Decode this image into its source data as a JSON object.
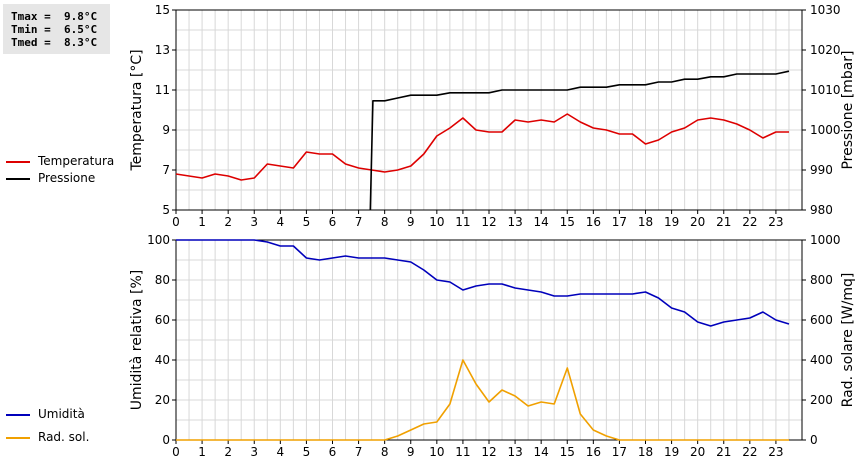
{
  "stats": {
    "tmax": "Tmax =  9.8°C",
    "tmin": "Tmin =  6.5°C",
    "tmed": "Tmed =  8.3°C"
  },
  "legend_top": [
    {
      "label": "Temperatura",
      "color": "#dd0000"
    },
    {
      "label": "Pressione",
      "color": "#000000"
    }
  ],
  "legend_bottom": [
    {
      "label": "Umidità",
      "color": "#0000bb"
    },
    {
      "label": "Rad. sol.",
      "color": "#f0a000"
    }
  ],
  "chart_data": [
    {
      "type": "line",
      "xlabel": "",
      "ylabel": "Temperatura [°C]",
      "ylabel_right": "Pressione [mbar]",
      "xlim": [
        0,
        24
      ],
      "xticks": [
        0,
        1,
        2,
        3,
        4,
        5,
        6,
        7,
        8,
        9,
        10,
        11,
        12,
        13,
        14,
        15,
        16,
        17,
        18,
        19,
        20,
        21,
        22,
        23
      ],
      "ylim": [
        5,
        15
      ],
      "yticks": [
        5,
        7,
        9,
        11,
        13,
        15
      ],
      "ylim_right": [
        980,
        1030
      ],
      "yticks_right": [
        980,
        990,
        1000,
        1010,
        1020,
        1030
      ],
      "grid": true,
      "series": [
        {
          "name": "Temperatura",
          "axis": "left",
          "color": "#dd0000",
          "x": [
            0,
            0.5,
            1,
            1.5,
            2,
            2.5,
            3,
            3.5,
            4,
            4.5,
            5,
            5.5,
            6,
            6.5,
            7,
            7.5,
            8,
            8.5,
            9,
            9.5,
            10,
            10.5,
            11,
            11.5,
            12,
            12.5,
            13,
            13.5,
            14,
            14.5,
            15,
            15.5,
            16,
            16.5,
            17,
            17.5,
            18,
            18.5,
            19,
            19.5,
            20,
            20.5,
            21,
            21.5,
            22,
            22.5,
            23,
            23.5
          ],
          "y": [
            6.8,
            6.7,
            6.6,
            6.8,
            6.7,
            6.5,
            6.6,
            7.3,
            7.2,
            7.1,
            7.9,
            7.8,
            7.8,
            7.3,
            7.1,
            7.0,
            6.9,
            7.0,
            7.2,
            7.8,
            8.7,
            9.1,
            9.6,
            9.0,
            8.9,
            8.9,
            9.5,
            9.4,
            9.5,
            9.4,
            9.8,
            9.4,
            9.1,
            9.0,
            8.8,
            8.8,
            8.3,
            8.5,
            8.9,
            9.1,
            9.5,
            9.6,
            9.5,
            9.3,
            9.0,
            8.6,
            8.9,
            8.9
          ]
        },
        {
          "name": "Pressione",
          "axis": "right",
          "color": "#000000",
          "x": [
            7.45,
            7.55,
            8,
            8.5,
            9,
            9.5,
            10,
            10.5,
            11,
            11.5,
            12,
            12.5,
            13,
            13.5,
            14,
            14.5,
            15,
            15.5,
            16,
            16.5,
            17,
            17.5,
            18,
            18.5,
            19,
            19.5,
            20,
            20.5,
            21,
            21.5,
            22,
            22.5,
            23,
            23.5
          ],
          "y": [
            980,
            1007.3,
            1007.3,
            1008,
            1008.7,
            1008.7,
            1008.7,
            1009.3,
            1009.3,
            1009.3,
            1009.3,
            1010,
            1010,
            1010,
            1010,
            1010,
            1010,
            1010.7,
            1010.7,
            1010.7,
            1011.3,
            1011.3,
            1011.3,
            1012,
            1012,
            1012.7,
            1012.7,
            1013.3,
            1013.3,
            1014,
            1014,
            1014,
            1014,
            1014.7
          ]
        }
      ]
    },
    {
      "type": "line",
      "xlabel": "",
      "ylabel": "Umidità relativa [%]",
      "ylabel_right": "Rad. solare [W/mq]",
      "xlim": [
        0,
        24
      ],
      "xticks": [
        0,
        1,
        2,
        3,
        4,
        5,
        6,
        7,
        8,
        9,
        10,
        11,
        12,
        13,
        14,
        15,
        16,
        17,
        18,
        19,
        20,
        21,
        22,
        23
      ],
      "ylim": [
        0,
        100
      ],
      "yticks": [
        0,
        20,
        40,
        60,
        80,
        100
      ],
      "ylim_right": [
        0,
        1000
      ],
      "yticks_right": [
        0,
        200,
        400,
        600,
        800,
        1000
      ],
      "grid": true,
      "series": [
        {
          "name": "Umidità",
          "axis": "left",
          "color": "#0000bb",
          "x": [
            0,
            0.5,
            1,
            1.5,
            2,
            2.5,
            3,
            3.5,
            4,
            4.5,
            5,
            5.5,
            6,
            6.5,
            7,
            7.5,
            8,
            8.5,
            9,
            9.5,
            10,
            10.5,
            11,
            11.5,
            12,
            12.5,
            13,
            13.5,
            14,
            14.5,
            15,
            15.5,
            16,
            16.5,
            17,
            17.5,
            18,
            18.5,
            19,
            19.5,
            20,
            20.5,
            21,
            21.5,
            22,
            22.5,
            23,
            23.5
          ],
          "y": [
            100,
            100,
            100,
            100,
            100,
            100,
            100,
            99,
            97,
            97,
            91,
            90,
            91,
            92,
            91,
            91,
            91,
            90,
            89,
            85,
            80,
            79,
            75,
            77,
            78,
            78,
            76,
            75,
            74,
            72,
            72,
            73,
            73,
            73,
            73,
            73,
            74,
            71,
            66,
            64,
            59,
            57,
            59,
            60,
            61,
            64,
            60,
            58
          ]
        },
        {
          "name": "Rad. sol.",
          "axis": "right",
          "color": "#f0a000",
          "x": [
            0,
            0.5,
            1,
            1.5,
            2,
            2.5,
            3,
            3.5,
            4,
            4.5,
            5,
            5.5,
            6,
            6.5,
            7,
            7.5,
            8,
            8.5,
            9,
            9.5,
            10,
            10.5,
            11,
            11.5,
            12,
            12.5,
            13,
            13.5,
            14,
            14.5,
            15,
            15.5,
            16,
            16.5,
            17,
            17.5,
            18,
            18.5,
            19,
            19.5,
            20,
            20.5,
            21,
            21.5,
            22,
            22.5,
            23,
            23.5
          ],
          "y": [
            0,
            0,
            0,
            0,
            0,
            0,
            0,
            0,
            0,
            0,
            0,
            0,
            0,
            0,
            0,
            0,
            0,
            20,
            50,
            80,
            90,
            180,
            400,
            280,
            190,
            250,
            220,
            170,
            190,
            180,
            360,
            130,
            50,
            20,
            0,
            0,
            0,
            0,
            0,
            0,
            0,
            0,
            0,
            0,
            0,
            0,
            0,
            0
          ]
        }
      ]
    }
  ]
}
